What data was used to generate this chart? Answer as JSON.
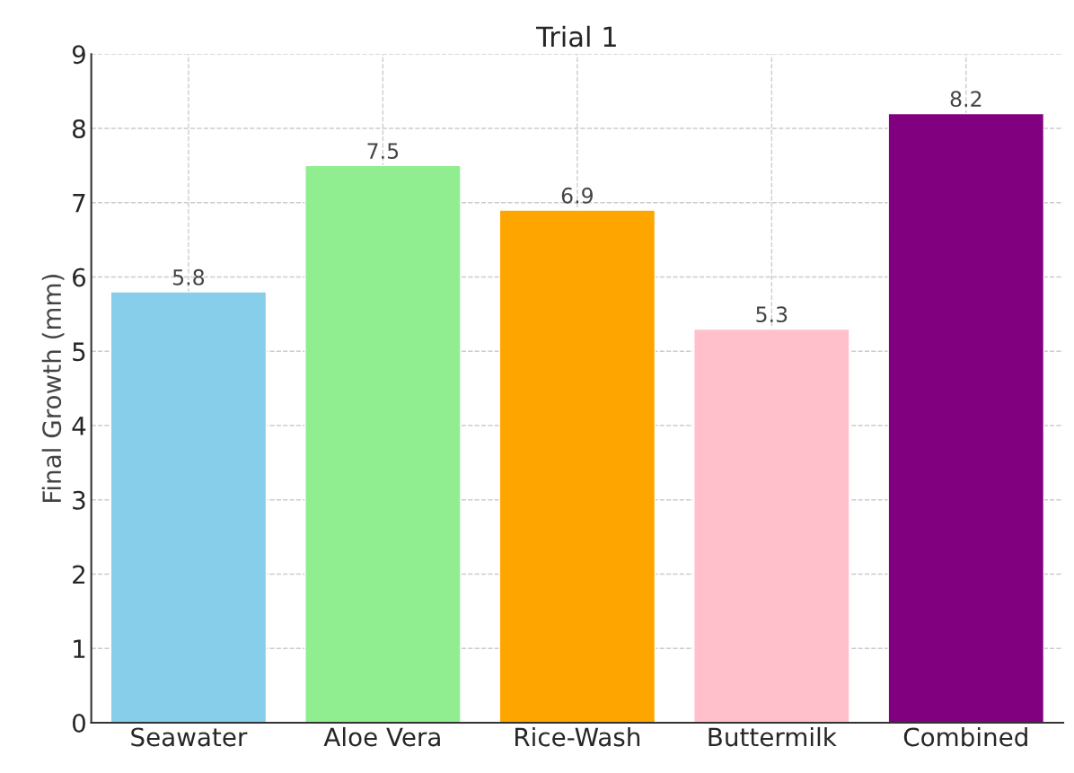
{
  "chart_data": {
    "type": "bar",
    "title": "Trial 1",
    "ylabel": "Final Growth (mm)",
    "categories": [
      "Seawater",
      "Aloe Vera",
      "Rice-Wash",
      "Buttermilk",
      "Combined"
    ],
    "values": [
      5.8,
      7.5,
      6.9,
      5.3,
      8.2
    ],
    "colors": [
      "#87ceeb",
      "#90ee90",
      "#ffa500",
      "#ffc0cb",
      "#800080"
    ],
    "ylim": [
      0,
      9
    ],
    "yticks": [
      0,
      1,
      2,
      3,
      4,
      5,
      6,
      7,
      8,
      9
    ],
    "grid": true,
    "data_labels": true
  }
}
